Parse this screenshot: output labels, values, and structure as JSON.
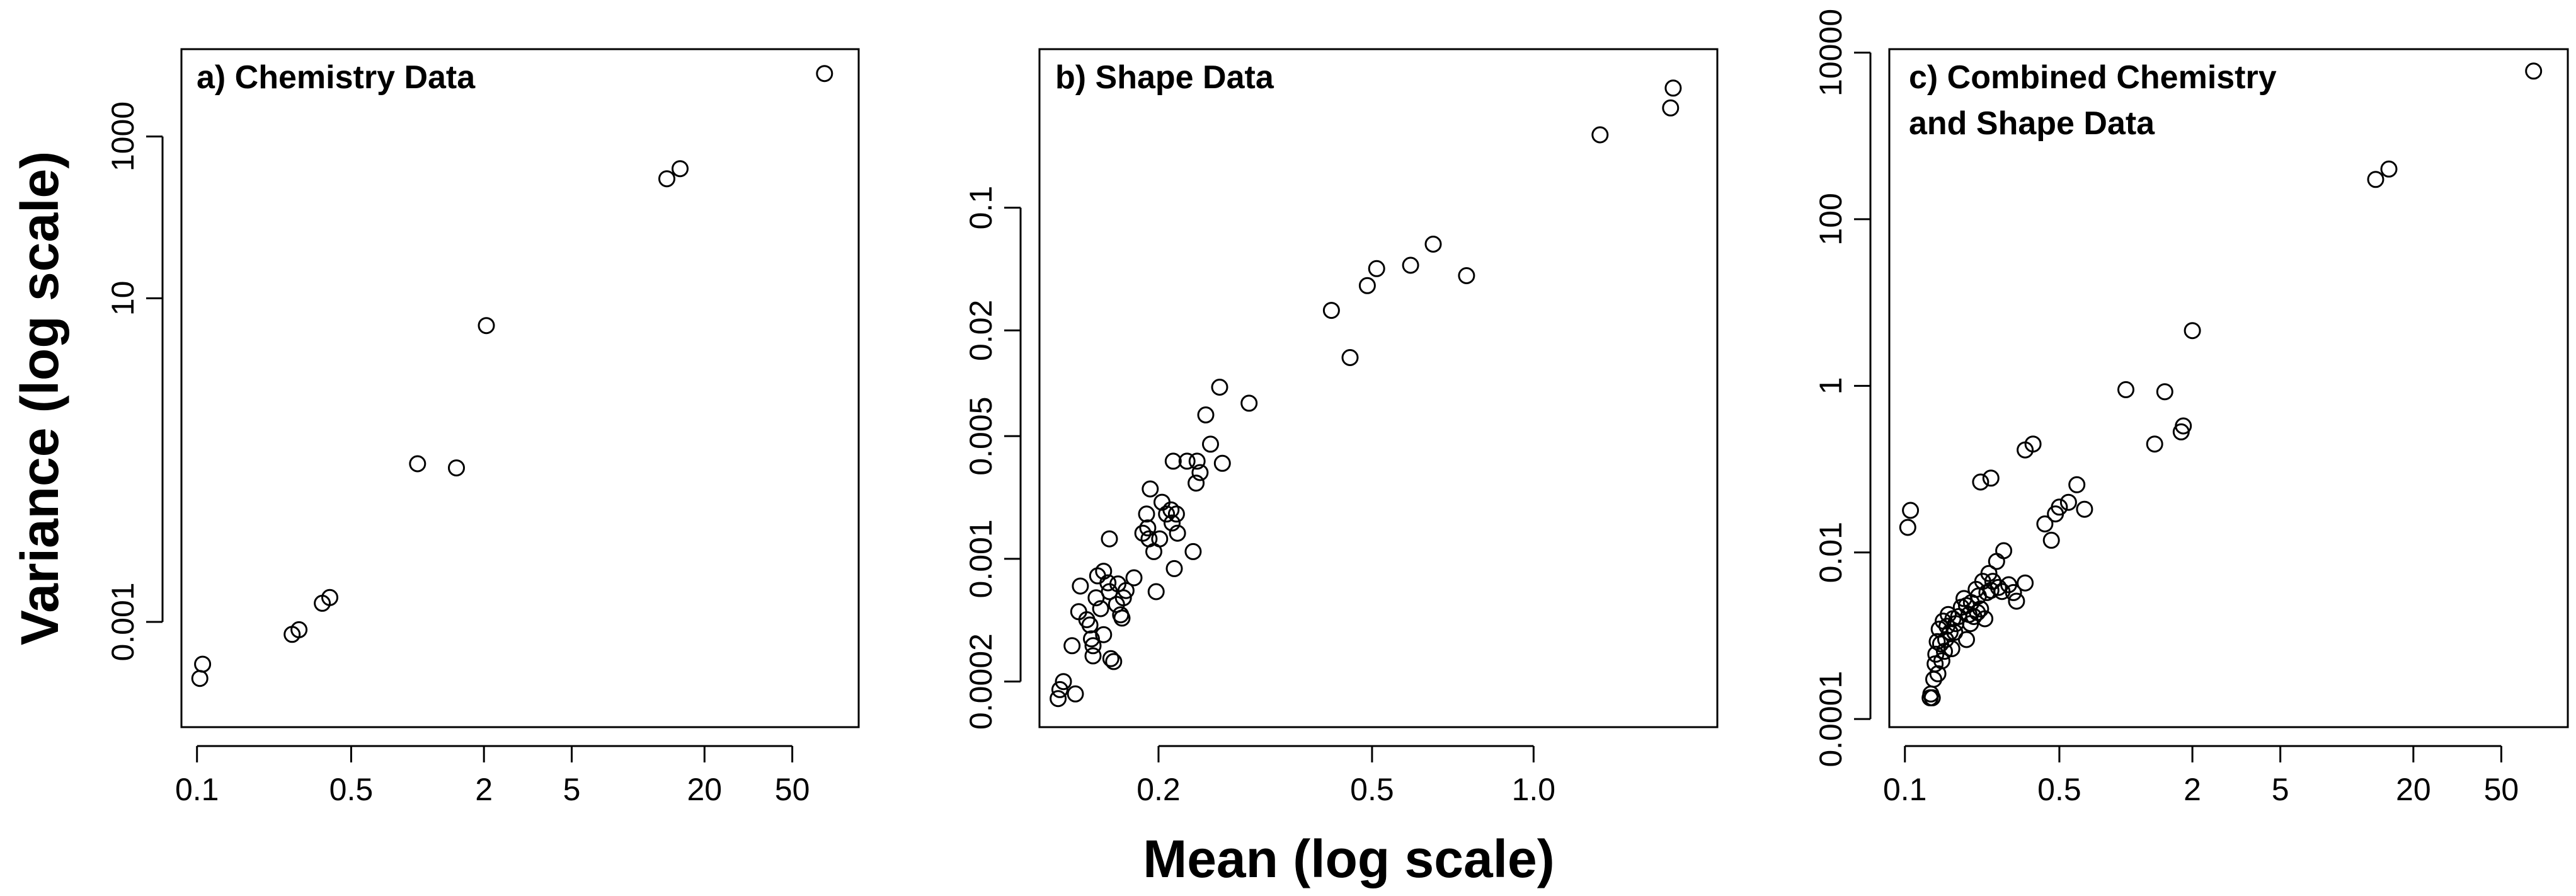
{
  "figure": {
    "ylabel": "Variance (log scale)",
    "xlabel": "Mean (log scale)"
  },
  "chart_data": [
    {
      "type": "scatter",
      "title": "a) Chemistry Data",
      "xscale": "log",
      "yscale": "log",
      "xlim": [
        0.085,
        100
      ],
      "ylim": [
        5e-05,
        12000
      ],
      "xticks": [
        0.1,
        0.5,
        2,
        5,
        20,
        50
      ],
      "xtick_labels": [
        "0.1",
        "0.5",
        "2",
        "5",
        "20",
        "50"
      ],
      "yticks": [
        0.001,
        10,
        1000
      ],
      "ytick_labels": [
        "0.001",
        "10",
        "1000"
      ],
      "points": [
        [
          0.103,
          0.0002
        ],
        [
          0.106,
          0.0003
        ],
        [
          0.27,
          0.0007
        ],
        [
          0.29,
          0.0008
        ],
        [
          0.37,
          0.0017
        ],
        [
          0.4,
          0.002
        ],
        [
          1.0,
          0.09
        ],
        [
          1.5,
          0.08
        ],
        [
          2.05,
          4.6
        ],
        [
          13.5,
          300
        ],
        [
          15.5,
          400
        ],
        [
          70,
          6000
        ]
      ]
    },
    {
      "type": "scatter",
      "title": "b) Shape Data",
      "xscale": "log",
      "yscale": "log",
      "xlim": [
        0.12,
        2.2
      ],
      "ylim": [
        0.00011,
        0.8
      ],
      "xticks": [
        0.2,
        0.5,
        1.0
      ],
      "xtick_labels": [
        "0.2",
        "0.5",
        "1.0"
      ],
      "yticks": [
        0.0002,
        0.001,
        0.005,
        0.02,
        0.1
      ],
      "ytick_labels": [
        "0.0002",
        "0.001",
        "0.005",
        "0.02",
        "0.1"
      ],
      "points": [
        [
          0.13,
          0.00016
        ],
        [
          0.131,
          0.00018
        ],
        [
          0.133,
          0.0002
        ],
        [
          0.14,
          0.00017
        ],
        [
          0.138,
          0.00032
        ],
        [
          0.142,
          0.0005
        ],
        [
          0.143,
          0.0007
        ],
        [
          0.147,
          0.00045
        ],
        [
          0.149,
          0.00042
        ],
        [
          0.15,
          0.00035
        ],
        [
          0.151,
          0.00032
        ],
        [
          0.151,
          0.00028
        ],
        [
          0.153,
          0.0006
        ],
        [
          0.154,
          0.0008
        ],
        [
          0.156,
          0.00052
        ],
        [
          0.158,
          0.00037
        ],
        [
          0.158,
          0.00085
        ],
        [
          0.161,
          0.00073
        ],
        [
          0.162,
          0.00065
        ],
        [
          0.162,
          0.0013
        ],
        [
          0.163,
          0.00027
        ],
        [
          0.165,
          0.00026
        ],
        [
          0.167,
          0.00055
        ],
        [
          0.168,
          0.00072
        ],
        [
          0.17,
          0.00048
        ],
        [
          0.171,
          0.00046
        ],
        [
          0.172,
          0.0006
        ],
        [
          0.174,
          0.00066
        ],
        [
          0.18,
          0.00078
        ],
        [
          0.187,
          0.0014
        ],
        [
          0.19,
          0.0018
        ],
        [
          0.191,
          0.0015
        ],
        [
          0.192,
          0.0013
        ],
        [
          0.193,
          0.0025
        ],
        [
          0.196,
          0.0011
        ],
        [
          0.198,
          0.00065
        ],
        [
          0.201,
          0.0013
        ],
        [
          0.203,
          0.0021
        ],
        [
          0.207,
          0.0018
        ],
        [
          0.211,
          0.0019
        ],
        [
          0.212,
          0.0016
        ],
        [
          0.213,
          0.0036
        ],
        [
          0.214,
          0.00088
        ],
        [
          0.216,
          0.0018
        ],
        [
          0.217,
          0.0014
        ],
        [
          0.226,
          0.0036
        ],
        [
          0.232,
          0.0011
        ],
        [
          0.235,
          0.0027
        ],
        [
          0.236,
          0.0036
        ],
        [
          0.239,
          0.0031
        ],
        [
          0.245,
          0.0066
        ],
        [
          0.25,
          0.0045
        ],
        [
          0.26,
          0.0095
        ],
        [
          0.263,
          0.0035
        ],
        [
          0.295,
          0.0077
        ],
        [
          0.42,
          0.026
        ],
        [
          0.455,
          0.014
        ],
        [
          0.49,
          0.036
        ],
        [
          0.51,
          0.045
        ],
        [
          0.59,
          0.047
        ],
        [
          0.65,
          0.062
        ],
        [
          0.75,
          0.041
        ],
        [
          1.33,
          0.26
        ],
        [
          1.8,
          0.37
        ],
        [
          1.82,
          0.48
        ]
      ]
    },
    {
      "type": "scatter",
      "title": "c) Combined Chemistry and Shape Data",
      "title_lines": [
        "c) Combined Chemistry",
        "and Shape Data"
      ],
      "xscale": "log",
      "yscale": "log",
      "xlim": [
        0.085,
        100
      ],
      "ylim": [
        8e-05,
        11000
      ],
      "xticks": [
        0.1,
        0.5,
        2,
        5,
        20,
        50
      ],
      "xtick_labels": [
        "0.1",
        "0.5",
        "2",
        "5",
        "20",
        "50"
      ],
      "yticks": [
        0.0001,
        0.01,
        1,
        100,
        10000
      ],
      "ytick_labels": [
        "0.0001",
        "0.01",
        "1",
        "100",
        "10000"
      ],
      "points": [
        [
          0.103,
          0.02
        ],
        [
          0.106,
          0.032
        ],
        [
          0.13,
          0.00018
        ],
        [
          0.131,
          0.0002
        ],
        [
          0.133,
          0.00018
        ],
        [
          0.135,
          0.0003
        ],
        [
          0.137,
          0.00046
        ],
        [
          0.138,
          0.0006
        ],
        [
          0.14,
          0.00085
        ],
        [
          0.141,
          0.00035
        ],
        [
          0.143,
          0.0012
        ],
        [
          0.145,
          0.0008
        ],
        [
          0.147,
          0.0005
        ],
        [
          0.149,
          0.0015
        ],
        [
          0.151,
          0.00065
        ],
        [
          0.153,
          0.0009
        ],
        [
          0.155,
          0.0013
        ],
        [
          0.157,
          0.0018
        ],
        [
          0.16,
          0.0011
        ],
        [
          0.163,
          0.0007
        ],
        [
          0.165,
          0.0016
        ],
        [
          0.168,
          0.0011
        ],
        [
          0.17,
          0.0014
        ],
        [
          0.175,
          0.0017
        ],
        [
          0.18,
          0.0022
        ],
        [
          0.185,
          0.0028
        ],
        [
          0.19,
          0.0009
        ],
        [
          0.19,
          0.0023
        ],
        [
          0.195,
          0.0018
        ],
        [
          0.198,
          0.0014
        ],
        [
          0.2,
          0.0025
        ],
        [
          0.205,
          0.0017
        ],
        [
          0.21,
          0.0036
        ],
        [
          0.213,
          0.0019
        ],
        [
          0.215,
          0.003
        ],
        [
          0.22,
          0.0021
        ],
        [
          0.225,
          0.0045
        ],
        [
          0.23,
          0.0016
        ],
        [
          0.235,
          0.0033
        ],
        [
          0.24,
          0.0056
        ],
        [
          0.245,
          0.0035
        ],
        [
          0.25,
          0.0045
        ],
        [
          0.26,
          0.0078
        ],
        [
          0.265,
          0.0038
        ],
        [
          0.275,
          0.0034
        ],
        [
          0.28,
          0.0105
        ],
        [
          0.295,
          0.0041
        ],
        [
          0.31,
          0.0033
        ],
        [
          0.32,
          0.0026
        ],
        [
          0.35,
          0.0043
        ],
        [
          0.22,
          0.07
        ],
        [
          0.245,
          0.078
        ],
        [
          0.35,
          0.17
        ],
        [
          0.38,
          0.2
        ],
        [
          0.43,
          0.022
        ],
        [
          0.46,
          0.014
        ],
        [
          0.48,
          0.029
        ],
        [
          0.5,
          0.035
        ],
        [
          0.55,
          0.04
        ],
        [
          0.6,
          0.065
        ],
        [
          0.65,
          0.033
        ],
        [
          1.0,
          0.9
        ],
        [
          1.35,
          0.2
        ],
        [
          1.5,
          0.85
        ],
        [
          1.78,
          0.28
        ],
        [
          1.82,
          0.33
        ],
        [
          2.0,
          4.6
        ],
        [
          13.5,
          300
        ],
        [
          15.5,
          400
        ],
        [
          70,
          6000
        ]
      ]
    }
  ]
}
